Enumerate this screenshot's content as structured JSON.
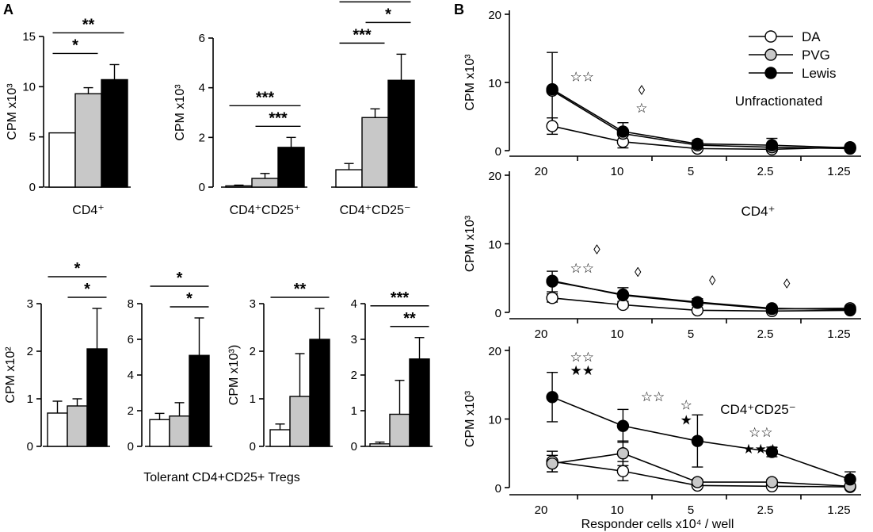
{
  "panels": {
    "a": "A",
    "b": "B"
  },
  "colors": {
    "DA": "#ffffff",
    "PVG": "#c8c8c8",
    "Lewis": "#000000"
  },
  "captions": {
    "bottom_group": "Tolerant CD4+CD25+ Tregs",
    "b_xlabel": "Responder cells x10⁴ / well"
  },
  "chart_data": [
    {
      "id": "a1",
      "type": "bar",
      "ylabel": "CPM x10³",
      "ylim": [
        0,
        15
      ],
      "yticks": [
        0,
        5,
        10,
        15
      ],
      "groups": [
        {
          "label": "CD4⁺",
          "values": [
            5.4,
            9.3,
            10.7
          ],
          "errors": [
            0,
            0.6,
            1.5
          ]
        }
      ],
      "brackets": [
        {
          "from": 0,
          "to": 2,
          "label": "**",
          "level": 1
        },
        {
          "from": 0,
          "to": 1,
          "label": "*",
          "level": 0
        }
      ]
    },
    {
      "id": "a2",
      "type": "bar",
      "ylabel": "CPM x10³",
      "ylim": [
        0,
        6
      ],
      "yticks": [
        0,
        2,
        4,
        6
      ],
      "groups": [
        {
          "label": "CD4⁺CD25⁺",
          "values": [
            0.05,
            0.35,
            1.6
          ],
          "errors": [
            0.03,
            0.2,
            0.4
          ],
          "brackets": [
            {
              "from": 0,
              "to": 2,
              "label": "***",
              "level": 1
            },
            {
              "from": 1,
              "to": 2,
              "label": "***",
              "level": 0
            }
          ]
        },
        {
          "label": "CD4⁺CD25⁻",
          "values": [
            0.7,
            2.8,
            4.3
          ],
          "errors": [
            0.25,
            0.35,
            1.05
          ],
          "brackets": [
            {
              "from": 0,
              "to": 2,
              "label": "***",
              "level": 2
            },
            {
              "from": 1,
              "to": 2,
              "label": "*",
              "level": 1
            },
            {
              "from": 0,
              "to": 1,
              "label": "***",
              "level": 0
            }
          ]
        }
      ]
    },
    {
      "id": "a3",
      "type": "bar",
      "ylabel": "CPM  x10²",
      "ylim": [
        0,
        3
      ],
      "yticks": [
        0,
        1,
        2,
        3
      ],
      "groups": [
        {
          "label": "",
          "values": [
            0.7,
            0.85,
            2.05
          ],
          "errors": [
            0.25,
            0.15,
            0.85
          ]
        }
      ],
      "brackets": [
        {
          "from": 0,
          "to": 2,
          "label": "*",
          "level": 1
        },
        {
          "from": 1,
          "to": 2,
          "label": "*",
          "level": 0
        }
      ]
    },
    {
      "id": "a4",
      "type": "bar",
      "ylabel": "",
      "ylim": [
        0,
        8
      ],
      "yticks": [
        0,
        2,
        4,
        6,
        8
      ],
      "groups": [
        {
          "label": "",
          "values": [
            1.5,
            1.7,
            5.1
          ],
          "errors": [
            0.35,
            0.75,
            2.1
          ]
        }
      ],
      "brackets": [
        {
          "from": 0,
          "to": 2,
          "label": "*",
          "level": 1
        },
        {
          "from": 1,
          "to": 2,
          "label": "*",
          "level": 0
        }
      ]
    },
    {
      "id": "a5",
      "type": "bar",
      "ylabel": "CPM x10³)",
      "ylim": [
        0,
        3
      ],
      "yticks": [
        0,
        1,
        2,
        3
      ],
      "groups": [
        {
          "label": "",
          "values": [
            0.35,
            1.05,
            2.25
          ],
          "errors": [
            0.12,
            0.9,
            0.65
          ]
        }
      ],
      "brackets": [
        {
          "from": 0,
          "to": 2,
          "label": "**",
          "level": 0
        }
      ]
    },
    {
      "id": "a6",
      "type": "bar",
      "ylabel": "",
      "ylim": [
        0,
        4
      ],
      "yticks": [
        0,
        1,
        2,
        3,
        4
      ],
      "groups": [
        {
          "label": "",
          "values": [
            0.07,
            0.9,
            2.45
          ],
          "errors": [
            0.05,
            0.95,
            0.6
          ]
        }
      ],
      "brackets": [
        {
          "from": 0,
          "to": 2,
          "label": "***",
          "level": 1
        },
        {
          "from": 1,
          "to": 2,
          "label": "**",
          "level": 0
        }
      ]
    },
    {
      "id": "b1",
      "type": "line",
      "title": "Unfractionated",
      "ylabel": "CPM x10³",
      "ylim": [
        0,
        20
      ],
      "yticks": [
        0,
        10,
        20
      ],
      "categories": [
        "20",
        "10",
        "5",
        "2.5",
        "1.25"
      ],
      "legend": [
        "DA",
        "PVG",
        "Lewis"
      ],
      "series": [
        {
          "name": "DA",
          "x": [
            0.15,
            1.1,
            2.1,
            3.1,
            4.15
          ],
          "values": [
            3.6,
            1.3,
            0.3,
            0.2,
            0.5
          ],
          "errors": [
            1.2,
            0.9,
            0.2,
            0.2,
            0.2
          ]
        },
        {
          "name": "PVG",
          "x": [
            0.15,
            1.1,
            2.1,
            3.1,
            4.15
          ],
          "values": [
            8.8,
            2.5,
            0.8,
            0.5,
            0.3
          ],
          "errors": [
            0,
            0,
            0,
            0,
            0
          ]
        },
        {
          "name": "Lewis",
          "x": [
            0.15,
            1.1,
            2.1,
            3.1,
            4.15
          ],
          "values": [
            9.0,
            2.8,
            1.0,
            0.8,
            0.4
          ],
          "errors": [
            5.4,
            1.3,
            0.5,
            1.0,
            0.3
          ]
        }
      ],
      "annotations": [
        {
          "x": 0.55,
          "y": 10.2,
          "text": "☆☆"
        },
        {
          "x": 1.35,
          "y": 8.2,
          "text": "◊"
        },
        {
          "x": 1.35,
          "y": 5.6,
          "text": "☆"
        }
      ]
    },
    {
      "id": "b2",
      "type": "line",
      "title": "CD4⁺",
      "ylabel": "CPM x10³",
      "ylim": [
        0,
        20
      ],
      "yticks": [
        0,
        10,
        20
      ],
      "categories": [
        "20",
        "10",
        "5",
        "2.5",
        "1.25"
      ],
      "series": [
        {
          "name": "DA",
          "x": [
            0.15,
            1.1,
            2.1,
            3.1,
            4.15
          ],
          "values": [
            2.1,
            1.1,
            0.3,
            0.2,
            0.3
          ],
          "errors": [
            0.6,
            0.4,
            0.2,
            0.2,
            0.2
          ]
        },
        {
          "name": "PVG",
          "x": [
            0.15,
            1.1,
            2.1,
            3.1,
            4.15
          ],
          "values": [
            4.6,
            2.5,
            1.4,
            0.5,
            0.6
          ],
          "errors": [
            0,
            0,
            0,
            0,
            0
          ]
        },
        {
          "name": "Lewis",
          "x": [
            0.15,
            1.1,
            2.1,
            3.1,
            4.15
          ],
          "values": [
            4.5,
            2.6,
            1.5,
            0.6,
            0.4
          ],
          "errors": [
            1.5,
            1.0,
            0.5,
            0.3,
            0.3
          ]
        }
      ],
      "annotations": [
        {
          "x": 0.75,
          "y": 8.5,
          "text": "◊"
        },
        {
          "x": 0.55,
          "y": 5.8,
          "text": "☆☆"
        },
        {
          "x": 1.3,
          "y": 5.2,
          "text": "◊"
        },
        {
          "x": 2.3,
          "y": 4.0,
          "text": "◊"
        },
        {
          "x": 3.3,
          "y": 3.5,
          "text": "◊"
        }
      ]
    },
    {
      "id": "b3",
      "type": "line",
      "title": "CD4⁺CD25⁻",
      "ylabel": "CPM x10³",
      "ylim": [
        0,
        20
      ],
      "yticks": [
        0,
        10,
        20
      ],
      "categories": [
        "20",
        "10",
        "5",
        "2.5",
        "1.25"
      ],
      "series": [
        {
          "name": "DA",
          "x": [
            0.15,
            1.1,
            2.1,
            3.1,
            4.15
          ],
          "values": [
            3.8,
            2.4,
            0.3,
            0.2,
            0.1
          ],
          "errors": [
            1.5,
            1.4,
            0.3,
            0.2,
            0.1
          ]
        },
        {
          "name": "PVG",
          "x": [
            0.15,
            1.1,
            2.1,
            3.1,
            4.15
          ],
          "values": [
            3.5,
            5.0,
            0.8,
            0.8,
            0.2
          ],
          "errors": [
            1.2,
            1.8,
            0.4,
            0.4,
            0.1
          ]
        },
        {
          "name": "Lewis",
          "x": [
            0.15,
            1.1,
            2.1,
            3.1,
            4.15
          ],
          "values": [
            13.2,
            9.0,
            6.8,
            5.2,
            1.2
          ],
          "errors": [
            3.6,
            2.4,
            3.8,
            0.7,
            1.1
          ]
        }
      ],
      "annotations": [
        {
          "x": 0.55,
          "y": 18.4,
          "text": "☆☆"
        },
        {
          "x": 0.55,
          "y": 16.4,
          "text": "★★"
        },
        {
          "x": 1.5,
          "y": 12.6,
          "text": "☆☆"
        },
        {
          "x": 1.95,
          "y": 11.4,
          "text": "☆"
        },
        {
          "x": 1.95,
          "y": 9.2,
          "text": "★"
        },
        {
          "x": 2.95,
          "y": 7.4,
          "text": "☆☆"
        },
        {
          "x": 2.95,
          "y": 5.0,
          "text": "★★★"
        }
      ]
    }
  ]
}
